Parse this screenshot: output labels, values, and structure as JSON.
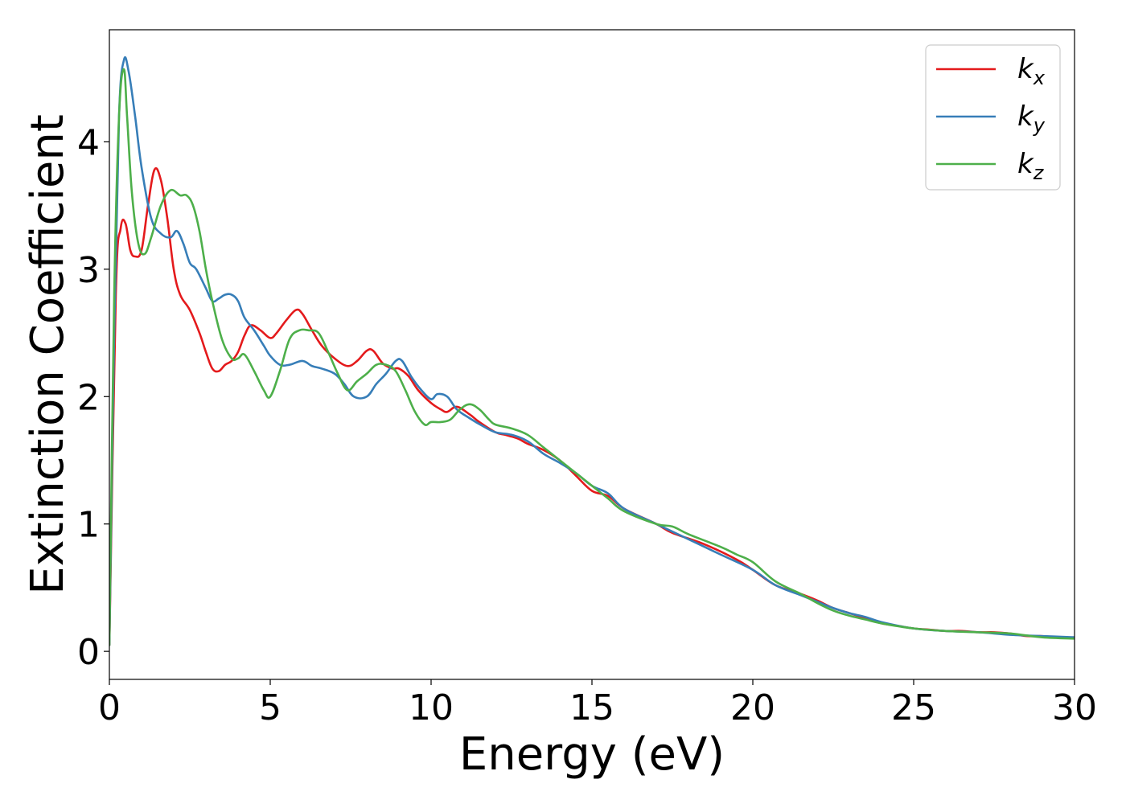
{
  "chart_data": {
    "type": "line",
    "title": "",
    "xlabel": "Energy (eV)",
    "ylabel": "Extinction Coefficient",
    "xlim": [
      0,
      30
    ],
    "ylim": [
      -0.22,
      4.88
    ],
    "xticks": [
      0,
      5,
      10,
      15,
      20,
      25,
      30
    ],
    "xtick_labels": [
      "0",
      "5",
      "10",
      "15",
      "20",
      "25",
      "30"
    ],
    "yticks": [
      0,
      1,
      2,
      3,
      4
    ],
    "ytick_labels": [
      "0",
      "1",
      "2",
      "3",
      "4"
    ],
    "grid": false,
    "legend_position": "top-right",
    "series": [
      {
        "name": "k",
        "subscript": "x",
        "color": "#e41a1c",
        "x": [
          0,
          0.2,
          0.35,
          0.5,
          0.65,
          0.8,
          1.0,
          1.2,
          1.4,
          1.6,
          1.8,
          2.0,
          2.2,
          2.5,
          2.8,
          3.0,
          3.2,
          3.4,
          3.6,
          3.8,
          4.0,
          4.2,
          4.4,
          4.7,
          5.0,
          5.2,
          5.5,
          5.8,
          6.0,
          6.3,
          6.6,
          7.0,
          7.4,
          7.7,
          8.0,
          8.2,
          8.5,
          8.8,
          9.0,
          9.3,
          9.6,
          10.0,
          10.3,
          10.5,
          10.8,
          11.2,
          11.5,
          12.0,
          12.3,
          12.7,
          13.0,
          13.5,
          14.0,
          14.5,
          15.0,
          15.5,
          16.0,
          17.0,
          17.5,
          18.5,
          19.5,
          20.0,
          20.7,
          21.5,
          22.0,
          22.5,
          23.0,
          23.5,
          24.0,
          24.5,
          25.0,
          25.5,
          26.0,
          26.5,
          27.0,
          27.5,
          28.0,
          28.5,
          29.0,
          29.5,
          30.0
        ],
        "y": [
          0.05,
          2.8,
          3.32,
          3.36,
          3.15,
          3.1,
          3.15,
          3.5,
          3.78,
          3.7,
          3.4,
          3.0,
          2.8,
          2.68,
          2.5,
          2.35,
          2.22,
          2.2,
          2.25,
          2.28,
          2.35,
          2.48,
          2.56,
          2.52,
          2.46,
          2.5,
          2.6,
          2.68,
          2.65,
          2.52,
          2.4,
          2.3,
          2.24,
          2.28,
          2.36,
          2.36,
          2.26,
          2.22,
          2.22,
          2.16,
          2.05,
          1.95,
          1.9,
          1.88,
          1.92,
          1.86,
          1.8,
          1.72,
          1.7,
          1.67,
          1.63,
          1.58,
          1.5,
          1.38,
          1.26,
          1.22,
          1.12,
          1.0,
          0.93,
          0.84,
          0.72,
          0.64,
          0.52,
          0.45,
          0.4,
          0.34,
          0.3,
          0.26,
          0.22,
          0.2,
          0.18,
          0.17,
          0.16,
          0.16,
          0.15,
          0.15,
          0.14,
          0.12,
          0.12,
          0.11,
          0.11
        ]
      },
      {
        "name": "k",
        "subscript": "y",
        "color": "#377eb8",
        "x": [
          0,
          0.15,
          0.3,
          0.45,
          0.6,
          0.8,
          1.0,
          1.3,
          1.6,
          1.9,
          2.1,
          2.3,
          2.5,
          2.7,
          3.0,
          3.2,
          3.4,
          3.6,
          3.8,
          4.0,
          4.2,
          4.5,
          4.8,
          5.0,
          5.3,
          5.6,
          6.0,
          6.3,
          6.6,
          7.0,
          7.3,
          7.6,
          8.0,
          8.3,
          8.6,
          8.9,
          9.1,
          9.4,
          9.7,
          10.0,
          10.2,
          10.5,
          10.8,
          11.2,
          11.6,
          12.0,
          12.5,
          13.0,
          13.5,
          14.0,
          14.5,
          15.0,
          15.5,
          16.0,
          17.0,
          18.0,
          19.0,
          20.0,
          20.7,
          21.5,
          22.0,
          22.5,
          23.0,
          23.5,
          24.0,
          25.0,
          26.0,
          27.0,
          28.0,
          29.0,
          30.0
        ],
        "y": [
          0.05,
          2.5,
          4.2,
          4.64,
          4.55,
          4.2,
          3.8,
          3.4,
          3.28,
          3.25,
          3.3,
          3.2,
          3.05,
          3.0,
          2.85,
          2.75,
          2.77,
          2.8,
          2.8,
          2.75,
          2.62,
          2.52,
          2.4,
          2.32,
          2.25,
          2.25,
          2.28,
          2.24,
          2.22,
          2.18,
          2.1,
          2.0,
          2.0,
          2.1,
          2.18,
          2.28,
          2.28,
          2.15,
          2.05,
          1.98,
          2.02,
          2.0,
          1.9,
          1.83,
          1.77,
          1.72,
          1.7,
          1.65,
          1.55,
          1.48,
          1.4,
          1.3,
          1.24,
          1.12,
          1.0,
          0.88,
          0.76,
          0.64,
          0.52,
          0.44,
          0.39,
          0.34,
          0.3,
          0.27,
          0.23,
          0.18,
          0.16,
          0.15,
          0.13,
          0.12,
          0.11
        ]
      },
      {
        "name": "k",
        "subscript": "z",
        "color": "#4daf4a",
        "x": [
          0,
          0.15,
          0.3,
          0.45,
          0.55,
          0.7,
          0.9,
          1.1,
          1.3,
          1.6,
          1.9,
          2.2,
          2.4,
          2.6,
          2.8,
          3.0,
          3.2,
          3.5,
          3.8,
          4.0,
          4.2,
          4.5,
          4.8,
          5.0,
          5.3,
          5.6,
          5.9,
          6.2,
          6.5,
          6.8,
          7.1,
          7.4,
          7.7,
          8.0,
          8.3,
          8.6,
          8.9,
          9.2,
          9.5,
          9.8,
          10.0,
          10.3,
          10.6,
          10.9,
          11.2,
          11.5,
          11.8,
          12.0,
          12.5,
          13.0,
          13.5,
          14.0,
          14.5,
          15.0,
          15.5,
          16.0,
          17.0,
          17.5,
          18.0,
          19.0,
          19.5,
          20.0,
          20.7,
          21.5,
          22.0,
          22.5,
          23.0,
          23.5,
          24.0,
          25.0,
          26.0,
          27.0,
          28.0,
          29.0,
          30.0
        ],
        "y": [
          0.05,
          2.8,
          4.2,
          4.57,
          4.2,
          3.6,
          3.2,
          3.12,
          3.25,
          3.5,
          3.62,
          3.58,
          3.58,
          3.5,
          3.3,
          3.0,
          2.75,
          2.45,
          2.3,
          2.3,
          2.33,
          2.2,
          2.05,
          2.0,
          2.2,
          2.45,
          2.52,
          2.52,
          2.5,
          2.35,
          2.18,
          2.05,
          2.12,
          2.18,
          2.25,
          2.25,
          2.2,
          2.05,
          1.88,
          1.78,
          1.8,
          1.8,
          1.82,
          1.9,
          1.94,
          1.9,
          1.82,
          1.78,
          1.75,
          1.7,
          1.6,
          1.5,
          1.4,
          1.3,
          1.2,
          1.1,
          1.0,
          0.98,
          0.92,
          0.82,
          0.76,
          0.7,
          0.55,
          0.45,
          0.38,
          0.32,
          0.28,
          0.25,
          0.22,
          0.18,
          0.16,
          0.15,
          0.14,
          0.11,
          0.1
        ]
      }
    ]
  }
}
